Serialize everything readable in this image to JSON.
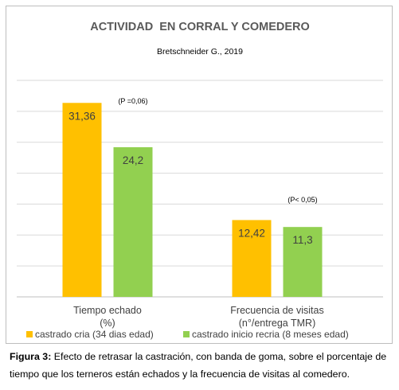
{
  "chart_data": {
    "type": "bar",
    "title": "ACTIVIDAD  EN CORRAL Y COMEDERO",
    "subtitle": "Bretschneider G., 2019",
    "categories": [
      "Tiempo echado\n(%)",
      "Frecuencia de visitas\n(n°/entrega TMR)"
    ],
    "series": [
      {
        "name": "castrado cria (34 dias edad)",
        "values": [
          31.36,
          12.42
        ],
        "labels": [
          "31,36",
          "12,42"
        ],
        "color": "#FFC000"
      },
      {
        "name": "castrado inicio recria (8 meses edad)",
        "values": [
          24.2,
          11.3
        ],
        "labels": [
          "24,2",
          "11,3"
        ],
        "color": "#92D050"
      }
    ],
    "annotations": [
      "(P =0,06)",
      "(P< 0,05)"
    ],
    "ylim": [
      0,
      35
    ],
    "grid": true,
    "legend": "bottom"
  },
  "caption": {
    "label": "Figura 3:",
    "text": " Efecto de retrasar la castración, con banda de goma, sobre el porcentaje de tiempo que los terneros están echados y la frecuencia de visitas al comedero."
  }
}
